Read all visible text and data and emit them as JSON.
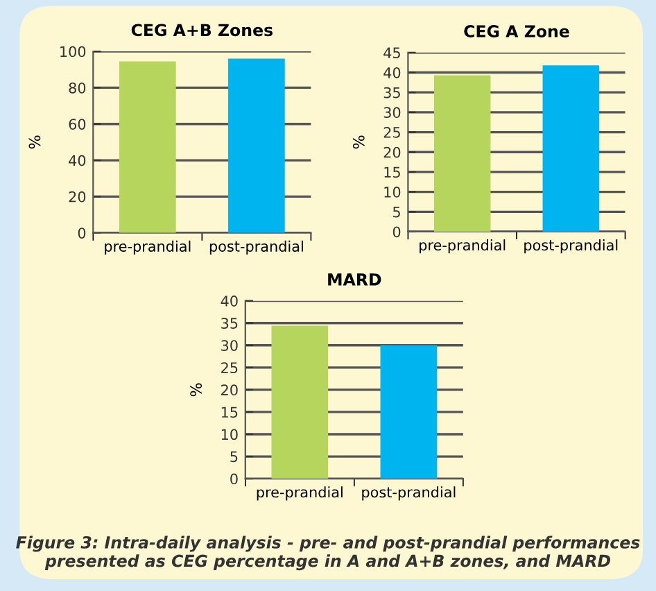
{
  "chart_data": [
    {
      "type": "bar",
      "title": "CEG A+B Zones",
      "ylabel": "%",
      "categories": [
        "pre-prandial",
        "post-prandial"
      ],
      "values": [
        94.5,
        96
      ],
      "colors": [
        "#b5d55c",
        "#00b4ef"
      ],
      "ylim": [
        0,
        100
      ],
      "yticks": [
        0,
        20,
        40,
        60,
        80,
        100
      ],
      "grid": "y"
    },
    {
      "type": "bar",
      "title": "CEG A Zone",
      "ylabel": "%",
      "categories": [
        "pre-prandial",
        "post-prandial"
      ],
      "values": [
        39.3,
        41.8
      ],
      "colors": [
        "#b5d55c",
        "#00b4ef"
      ],
      "ylim": [
        0,
        45
      ],
      "yticks": [
        0,
        5,
        10,
        15,
        20,
        25,
        30,
        35,
        40,
        45
      ],
      "grid": "y"
    },
    {
      "type": "bar",
      "title": "MARD",
      "ylabel": "%",
      "categories": [
        "pre-prandial",
        "post-prandial"
      ],
      "values": [
        34.4,
        30
      ],
      "colors": [
        "#b5d55c",
        "#00b4ef"
      ],
      "ylim": [
        0,
        40
      ],
      "yticks": [
        0,
        5,
        10,
        15,
        20,
        25,
        30,
        35,
        40
      ],
      "grid": "y",
      "annotations": [
        "Figure 3: Intra-daily analysis - pre- and post-prandial performances presented as CEG percentage in A and A+B zones, and MARD"
      ]
    }
  ]
}
